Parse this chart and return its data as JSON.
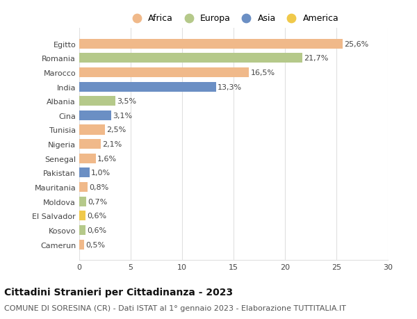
{
  "countries": [
    "Camerun",
    "Kosovo",
    "El Salvador",
    "Moldova",
    "Mauritania",
    "Pakistan",
    "Senegal",
    "Nigeria",
    "Tunisia",
    "Cina",
    "Albania",
    "India",
    "Marocco",
    "Romania",
    "Egitto"
  ],
  "values": [
    0.5,
    0.6,
    0.6,
    0.7,
    0.8,
    1.0,
    1.6,
    2.1,
    2.5,
    3.1,
    3.5,
    13.3,
    16.5,
    21.7,
    25.6
  ],
  "labels": [
    "0,5%",
    "0,6%",
    "0,6%",
    "0,7%",
    "0,8%",
    "1,0%",
    "1,6%",
    "2,1%",
    "2,5%",
    "3,1%",
    "3,5%",
    "13,3%",
    "16,5%",
    "21,7%",
    "25,6%"
  ],
  "continents": [
    "Africa",
    "Europa",
    "America",
    "Europa",
    "Africa",
    "Asia",
    "Africa",
    "Africa",
    "Africa",
    "Asia",
    "Europa",
    "Asia",
    "Africa",
    "Europa",
    "Africa"
  ],
  "continent_colors": {
    "Africa": "#F0B98A",
    "Europa": "#B5C98A",
    "Asia": "#6B8FC4",
    "America": "#F0C94A"
  },
  "legend_order": [
    "Africa",
    "Europa",
    "Asia",
    "America"
  ],
  "legend_colors": [
    "#F0B98A",
    "#B5C98A",
    "#6B8FC4",
    "#F0C94A"
  ],
  "title": "Cittadini Stranieri per Cittadinanza - 2023",
  "subtitle": "COMUNE DI SORESINA (CR) - Dati ISTAT al 1° gennaio 2023 - Elaborazione TUTTITALIA.IT",
  "xlim": [
    0,
    30
  ],
  "xticks": [
    0,
    5,
    10,
    15,
    20,
    25,
    30
  ],
  "background_color": "#ffffff",
  "grid_color": "#e0e0e0",
  "bar_height": 0.68,
  "title_fontsize": 10,
  "subtitle_fontsize": 8,
  "label_fontsize": 8,
  "tick_fontsize": 8,
  "legend_fontsize": 9
}
